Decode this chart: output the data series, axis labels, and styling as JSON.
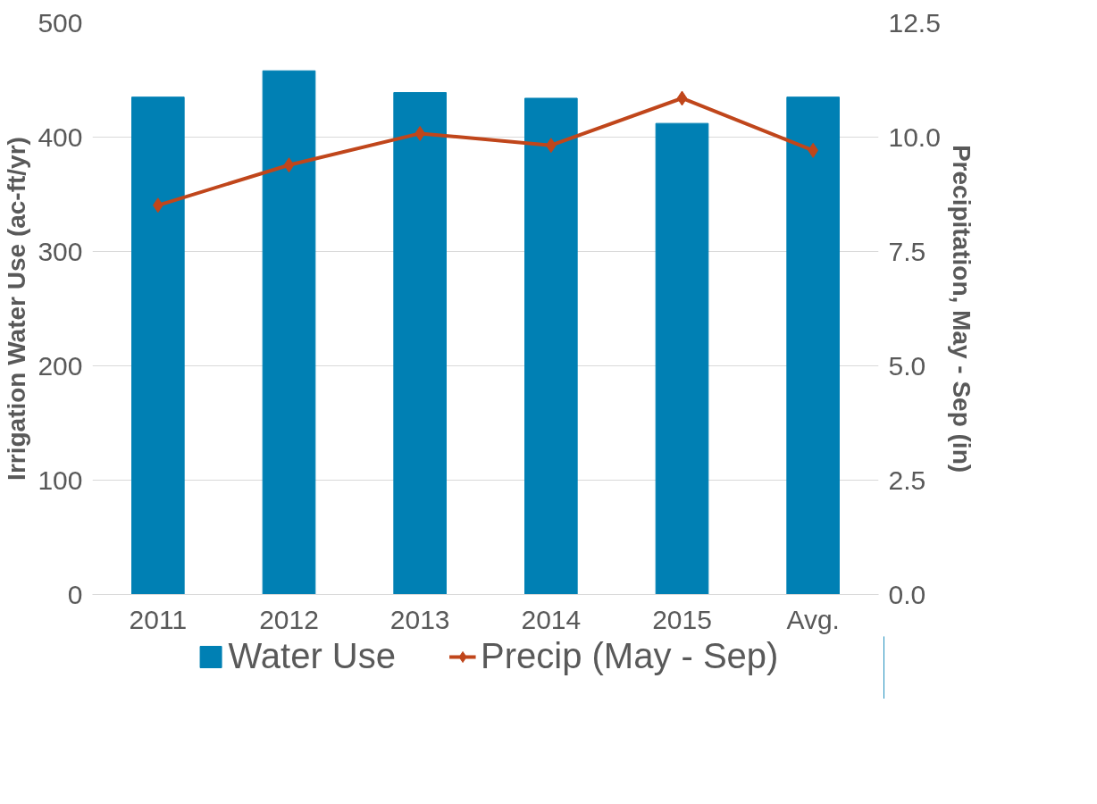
{
  "chart_data": {
    "type": "bar",
    "categories": [
      "2011",
      "2012",
      "2013",
      "2014",
      "2015",
      "Avg."
    ],
    "ylabel": "Irrigation Water Use (ac-ft/yr)",
    "y2label": "Precipitation, May - Sep (in)",
    "series": [
      {
        "name": "Water Use",
        "color": "#0080b4",
        "values": [
          435,
          458,
          439,
          434,
          412,
          435
        ]
      },
      {
        "name": "Precip (May - Sep)",
        "type": "line",
        "axis": "y2",
        "color": "#c0461b",
        "marker": "diamond",
        "values": [
          8.51,
          9.39,
          10.08,
          9.82,
          10.85,
          9.71
        ]
      }
    ],
    "ylim": [
      0,
      500
    ],
    "yticks": [
      0,
      100,
      200,
      300,
      400,
      500
    ],
    "y2lim": [
      0,
      12.5
    ],
    "y2ticks": [
      {
        "value": 0,
        "label": "0.0"
      },
      {
        "value": 2.5,
        "label": "2.5"
      },
      {
        "value": 5,
        "label": "5.0"
      },
      {
        "value": 7.5,
        "label": "7.5"
      },
      {
        "value": 10,
        "label": "10.0"
      },
      {
        "value": 12.5,
        "label": "12.5"
      }
    ],
    "grid": "y",
    "legend": "bottom"
  }
}
